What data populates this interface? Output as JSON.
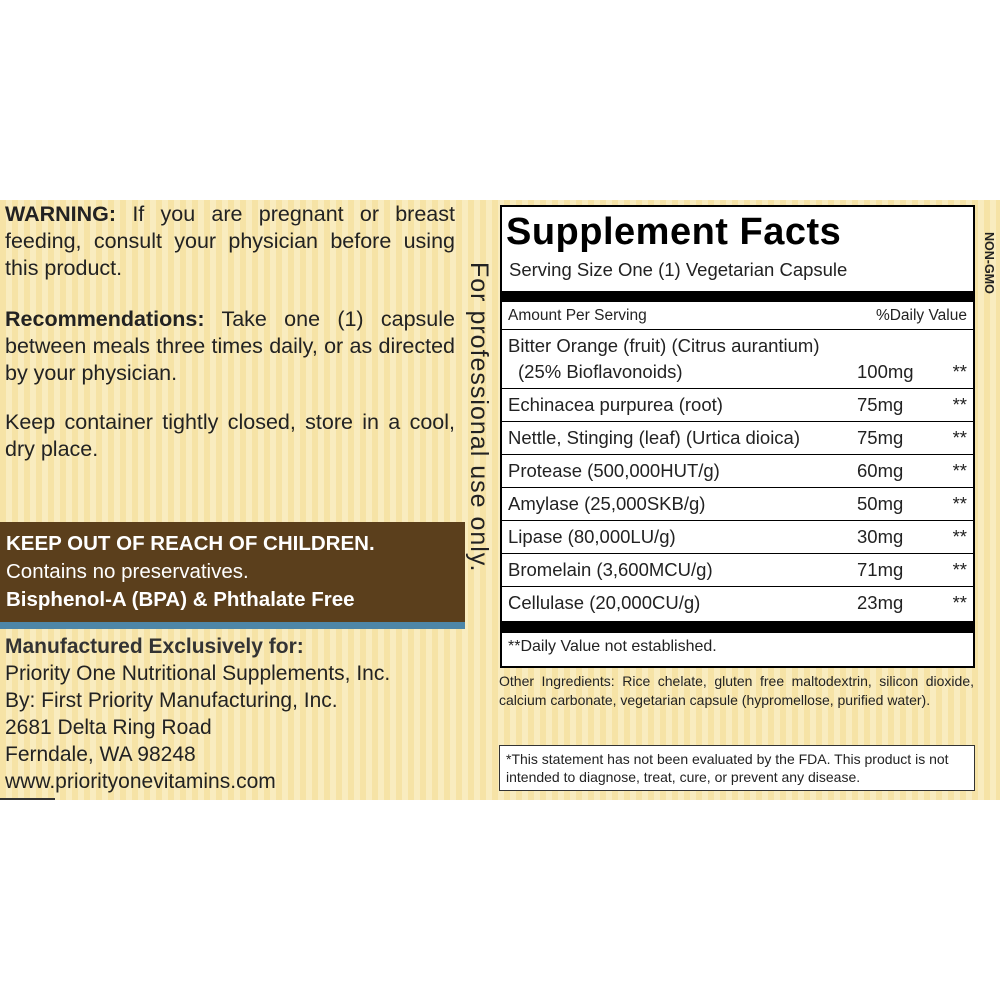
{
  "left": {
    "warning": {
      "label": "WARNING:",
      "text": "If you are pregnant or breast feeding, consult your physician before using this product."
    },
    "recommendations": {
      "label": "Recommendations:",
      "text": "Take one (1) capsule between meals three times daily, or as directed by your physician."
    },
    "storage": "Keep container tightly closed, store in a cool, dry place.",
    "children_band": [
      "KEEP OUT OF REACH OF CHILDREN.",
      "Contains no preservatives.",
      "Bisphenol-A (BPA) & Phthalate Free"
    ],
    "manufacturer": {
      "heading": "Manufactured Exclusively for:",
      "lines": [
        "Priority One Nutritional Supplements, Inc.",
        "By: First Priority Manufacturing, Inc.",
        "2681 Delta Ring Road",
        "Ferndale, WA 98248",
        "www.priorityonevitamins.com"
      ]
    }
  },
  "vertical_note": "For professional use only.",
  "non_gmo": "NON-GMO",
  "facts": {
    "title": "Supplement Facts",
    "serving_size": "Serving Size One (1) Vegetarian Capsule",
    "header": {
      "amount": "Amount Per Serving",
      "daily_value": "%Daily Value"
    },
    "rows": [
      {
        "name": [
          "Bitter Orange (fruit) (Citrus aurantium)",
          "(25% Bioflavonoids)"
        ],
        "amount": "100mg",
        "dv": "**"
      },
      {
        "name": [
          "Echinacea purpurea (root)"
        ],
        "amount": "75mg",
        "dv": "**"
      },
      {
        "name": [
          "Nettle, Stinging (leaf) (Urtica dioica)"
        ],
        "amount": "75mg",
        "dv": "**"
      },
      {
        "name": [
          "Protease (500,000HUT/g)"
        ],
        "amount": "60mg",
        "dv": "**"
      },
      {
        "name": [
          "Amylase (25,000SKB/g)"
        ],
        "amount": "50mg",
        "dv": "**"
      },
      {
        "name": [
          "Lipase (80,000LU/g)"
        ],
        "amount": "30mg",
        "dv": "**"
      },
      {
        "name": [
          "Bromelain (3,600MCU/g)"
        ],
        "amount": "71mg",
        "dv": "**"
      },
      {
        "name": [
          "Cellulase (20,000CU/g)"
        ],
        "amount": "23mg",
        "dv": "**"
      }
    ],
    "footnote": "**Daily Value not established."
  },
  "other_ingredients": "Other Ingredients: Rice chelate, gluten free maltodextrin, silicon dioxide, calcium carbonate, vegetarian capsule (hypromellose, purified water).",
  "fda_statement": "*This statement has not been evaluated by the FDA. This product is not intended to diagnose, treat, cure, or prevent any disease."
}
